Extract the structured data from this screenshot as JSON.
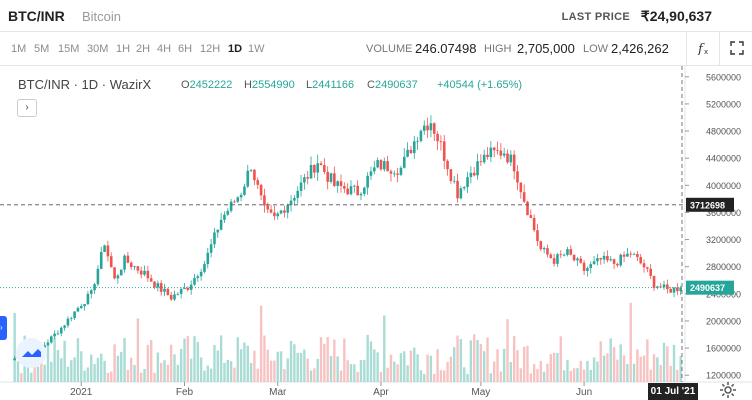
{
  "header": {
    "pair": "BTC/INR",
    "pair_name": "Bitcoin",
    "last_price_label": "LAST PRICE",
    "last_price_value": "₹24,90,637"
  },
  "toolbar": {
    "timeframes": [
      "1M",
      "5M",
      "15M",
      "30M",
      "1H",
      "2H",
      "4H",
      "6H",
      "12H",
      "1D",
      "1W"
    ],
    "active_timeframe": "1D",
    "volume_label": "VOLUME",
    "volume_value": "246.07498",
    "high_label": "HIGH",
    "high_value": "2,705,000",
    "low_label": "LOW",
    "low_value": "2,426,262",
    "indicator_icon": "function-icon",
    "fullscreen_icon": "fullscreen-icon"
  },
  "legend": {
    "title": "BTC/INR · 1D · WazirX",
    "o_label": "O",
    "o_value": "2452222",
    "h_label": "H",
    "h_value": "2554990",
    "l_label": "L",
    "l_value": "2441166",
    "c_label": "C",
    "c_value": "2490637",
    "change": "+40544 (+1.65%)"
  },
  "chart_data": {
    "type": "candlestick",
    "x_ticks": [
      "2021",
      "Feb",
      "Mar",
      "Apr",
      "May",
      "Jun"
    ],
    "y_ticks": [
      "5600000",
      "5200000",
      "4800000",
      "4400000",
      "4000000",
      "3600000",
      "3200000",
      "2800000",
      "2400000",
      "2000000",
      "1600000",
      "1200000"
    ],
    "ylim": [
      1100000,
      5700000
    ],
    "crosshair_price": "3712698",
    "last_price_marker": "2490637",
    "crosshair_date": "01 Jul '21",
    "up_color": "#26a69a",
    "down_color": "#ef5350",
    "close_path": [
      {
        "d": "2020-12-12",
        "v": 1450000
      },
      {
        "d": "2020-12-20",
        "v": 1600000
      },
      {
        "d": "2020-12-26",
        "v": 1900000
      },
      {
        "d": "2021-01-01",
        "v": 2250000
      },
      {
        "d": "2021-01-04",
        "v": 2400000
      },
      {
        "d": "2021-01-08",
        "v": 3150000
      },
      {
        "d": "2021-01-11",
        "v": 2600000
      },
      {
        "d": "2021-01-14",
        "v": 2900000
      },
      {
        "d": "2021-01-20",
        "v": 2700000
      },
      {
        "d": "2021-01-24",
        "v": 2500000
      },
      {
        "d": "2021-01-28",
        "v": 2350000
      },
      {
        "d": "2021-02-02",
        "v": 2500000
      },
      {
        "d": "2021-02-07",
        "v": 2850000
      },
      {
        "d": "2021-02-12",
        "v": 3500000
      },
      {
        "d": "2021-02-18",
        "v": 3900000
      },
      {
        "d": "2021-02-21",
        "v": 4300000
      },
      {
        "d": "2021-02-25",
        "v": 3600000
      },
      {
        "d": "2021-02-28",
        "v": 3500000
      },
      {
        "d": "2021-03-05",
        "v": 3800000
      },
      {
        "d": "2021-03-13",
        "v": 4350000
      },
      {
        "d": "2021-03-18",
        "v": 4000000
      },
      {
        "d": "2021-03-25",
        "v": 3900000
      },
      {
        "d": "2021-03-31",
        "v": 4300000
      },
      {
        "d": "2021-04-07",
        "v": 4250000
      },
      {
        "d": "2021-04-13",
        "v": 4850000
      },
      {
        "d": "2021-04-16",
        "v": 4950000
      },
      {
        "d": "2021-04-20",
        "v": 4450000
      },
      {
        "d": "2021-04-24",
        "v": 3900000
      },
      {
        "d": "2021-04-28",
        "v": 4200000
      },
      {
        "d": "2021-05-03",
        "v": 4450000
      },
      {
        "d": "2021-05-08",
        "v": 4500000
      },
      {
        "d": "2021-05-11",
        "v": 4300000
      },
      {
        "d": "2021-05-14",
        "v": 3800000
      },
      {
        "d": "2021-05-19",
        "v": 3050000
      },
      {
        "d": "2021-05-23",
        "v": 2900000
      },
      {
        "d": "2021-05-27",
        "v": 3000000
      },
      {
        "d": "2021-06-01",
        "v": 2750000
      },
      {
        "d": "2021-06-06",
        "v": 2900000
      },
      {
        "d": "2021-06-10",
        "v": 2850000
      },
      {
        "d": "2021-06-15",
        "v": 3000000
      },
      {
        "d": "2021-06-19",
        "v": 2800000
      },
      {
        "d": "2021-06-22",
        "v": 2550000
      },
      {
        "d": "2021-06-26",
        "v": 2450000
      },
      {
        "d": "2021-06-30",
        "v": 2490637
      }
    ]
  }
}
